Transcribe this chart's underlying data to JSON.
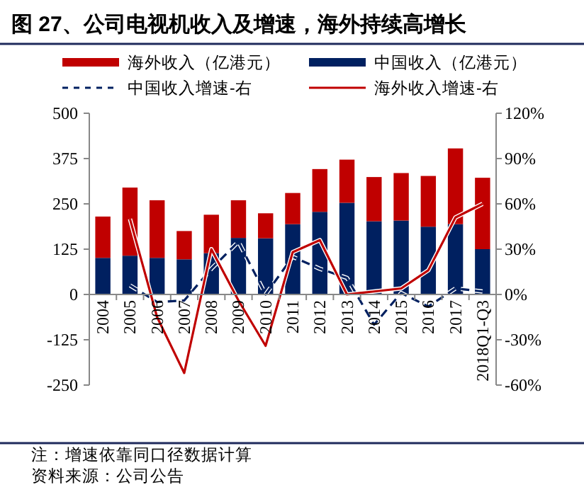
{
  "chart_data": {
    "type": "bar",
    "title": "图 27、公司电视机收入及增速，海外持续高增长",
    "categories": [
      "2004",
      "2005",
      "2006",
      "2007",
      "2008",
      "2009",
      "2010",
      "2011",
      "2012",
      "2013",
      "2014",
      "2015",
      "2016",
      "2017",
      "2018Q1-Q3"
    ],
    "stacked": true,
    "series": [
      {
        "name": "中国收入（亿港元）",
        "color": "#002060",
        "values": [
          101,
          107,
          101,
          97,
          114,
          156,
          155,
          194,
          228,
          253,
          202,
          204,
          187,
          194,
          125
        ]
      },
      {
        "name": "海外收入（亿港元）",
        "color": "#c00000",
        "values": [
          114,
          188,
          159,
          78,
          106,
          104,
          69,
          86,
          118,
          119,
          122,
          131,
          140,
          209,
          197
        ]
      },
      {
        "name": "中国收入增速-右",
        "type": "line",
        "axis": "y2",
        "line_style": "dashed",
        "color": "#002060",
        "values": [
          null,
          6,
          -5,
          -4,
          17,
          35,
          0,
          25,
          17,
          11,
          -20,
          1,
          -8,
          4,
          2
        ]
      },
      {
        "name": "海外收入增速-右",
        "type": "line",
        "axis": "y2",
        "line_style": "solid",
        "color": "#c00000",
        "values": [
          null,
          50,
          -15,
          -52,
          30,
          -4,
          -34,
          28,
          36,
          0,
          2,
          4,
          16,
          51,
          60
        ]
      }
    ],
    "ylim": [
      -250,
      500
    ],
    "yticks": [
      -250,
      -125,
      0,
      125,
      250,
      375,
      500
    ],
    "y2lim": [
      -60,
      120
    ],
    "y2ticks": [
      {
        "value": -60,
        "label": "-60%"
      },
      {
        "value": -30,
        "label": "-30%"
      },
      {
        "value": 0,
        "label": "0%"
      },
      {
        "value": 30,
        "label": "30%"
      },
      {
        "value": 60,
        "label": "60%"
      },
      {
        "value": 90,
        "label": "90%"
      },
      {
        "value": 120,
        "label": "120%"
      }
    ],
    "legend": "top",
    "annotations": [
      "注：增速依靠同口径数据计算",
      "资料来源：公司公告"
    ]
  }
}
